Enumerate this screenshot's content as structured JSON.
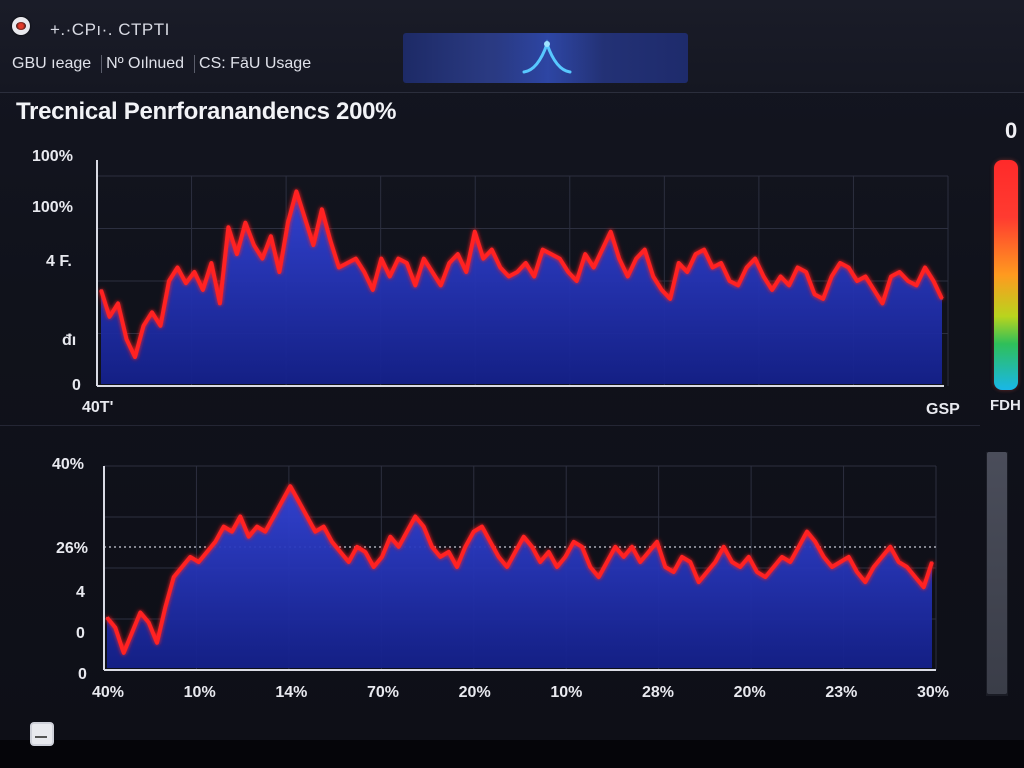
{
  "window": {
    "app_title": "+.·CPı·. CTPTI",
    "app_icon": "app-record-icon"
  },
  "tabs": [
    {
      "label": "GBU ıeage"
    },
    {
      "label": "Nº Oılnued"
    },
    {
      "label": "CS: FāU Usage"
    }
  ],
  "center_panel": {
    "icon": "signal-peak-icon"
  },
  "header": {
    "title": "Trecnical Penrforanandencs 200%",
    "corner_value": "0"
  },
  "colors": {
    "area_fill": "#1f2fb8",
    "line": "#ff1f1f",
    "grid": "#2c2f3f"
  },
  "colorbar": {
    "label": "FDH"
  },
  "chart_data": [
    {
      "type": "area",
      "y_tick_labels": [
        "100%",
        "100%",
        "4 F.",
        "đı",
        "0"
      ],
      "x_tick_labels": [
        "40T'",
        "GSP"
      ],
      "series": [
        {
          "values": [
            42,
            30,
            36,
            20,
            12,
            26,
            32,
            26,
            46,
            52,
            45,
            50,
            42,
            54,
            36,
            70,
            58,
            72,
            62,
            56,
            66,
            50,
            72,
            86,
            74,
            62,
            78,
            64,
            52,
            54,
            56,
            50,
            42,
            56,
            48,
            56,
            54,
            44,
            56,
            50,
            44,
            54,
            58,
            50,
            68,
            56,
            60,
            52,
            48,
            50,
            54,
            48,
            60,
            58,
            56,
            50,
            46,
            58,
            52,
            60,
            68,
            56,
            48,
            56,
            60,
            48,
            42,
            38,
            54,
            50,
            58,
            60,
            52,
            54,
            46,
            44,
            52,
            56,
            48,
            42,
            48,
            44,
            52,
            50,
            40,
            38,
            48,
            54,
            52,
            46,
            48,
            42,
            36,
            48,
            50,
            46,
            44,
            52,
            46,
            38
          ]
        }
      ]
    },
    {
      "type": "area",
      "y_tick_labels": [
        "40%",
        "26%",
        "4",
        "0",
        "0"
      ],
      "x_tick_labels": [
        "40%",
        "10%",
        "14%",
        "70%",
        "20%",
        "10%",
        "28%",
        "20%",
        "23%",
        "30%"
      ],
      "series": [
        {
          "values": [
            10,
            8,
            3,
            7,
            11,
            9,
            5,
            12,
            18,
            20,
            22,
            21,
            23,
            25,
            28,
            27,
            30,
            26,
            28,
            27,
            30,
            33,
            36,
            33,
            30,
            27,
            28,
            25,
            23,
            21,
            24,
            23,
            20,
            22,
            26,
            24,
            27,
            30,
            28,
            24,
            22,
            23,
            20,
            24,
            27,
            28,
            25,
            22,
            20,
            23,
            26,
            24,
            21,
            23,
            20,
            22,
            25,
            24,
            20,
            18,
            21,
            24,
            22,
            24,
            21,
            23,
            25,
            20,
            19,
            22,
            21,
            17,
            19,
            21,
            24,
            21,
            20,
            22,
            19,
            18,
            20,
            22,
            21,
            24,
            27,
            25,
            22,
            20,
            21,
            22,
            19,
            17,
            20,
            22,
            24,
            21,
            20,
            18,
            16,
            21
          ]
        }
      ]
    }
  ]
}
